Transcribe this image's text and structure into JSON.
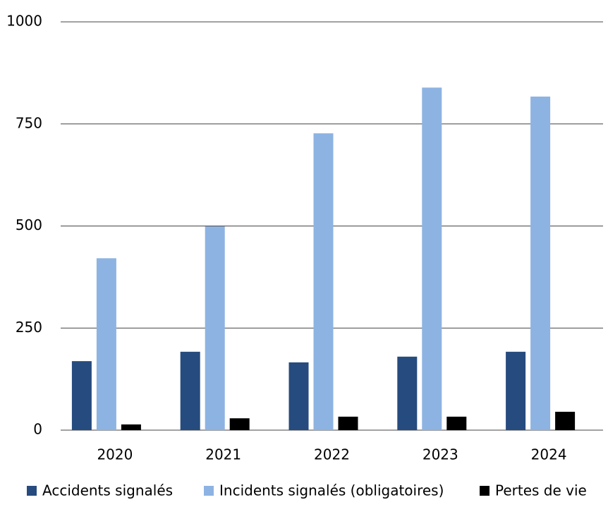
{
  "chart_data": {
    "type": "bar",
    "categories": [
      "2020",
      "2021",
      "2022",
      "2023",
      "2024"
    ],
    "series": [
      {
        "name": "Accidents signalés",
        "color": "#264b7e",
        "values": [
          169,
          192,
          166,
          180,
          192
        ]
      },
      {
        "name": "Incidents signalés (obligatoires)",
        "color": "#8db3e2",
        "values": [
          421,
          499,
          727,
          839,
          817
        ]
      },
      {
        "name": "Pertes de vie",
        "color": "#000000",
        "values": [
          14,
          29,
          33,
          33,
          45
        ]
      }
    ],
    "ylim": [
      0,
      1000
    ],
    "yticks": [
      0,
      250,
      500,
      750,
      1000
    ],
    "grid": true,
    "legend": "bottom"
  }
}
